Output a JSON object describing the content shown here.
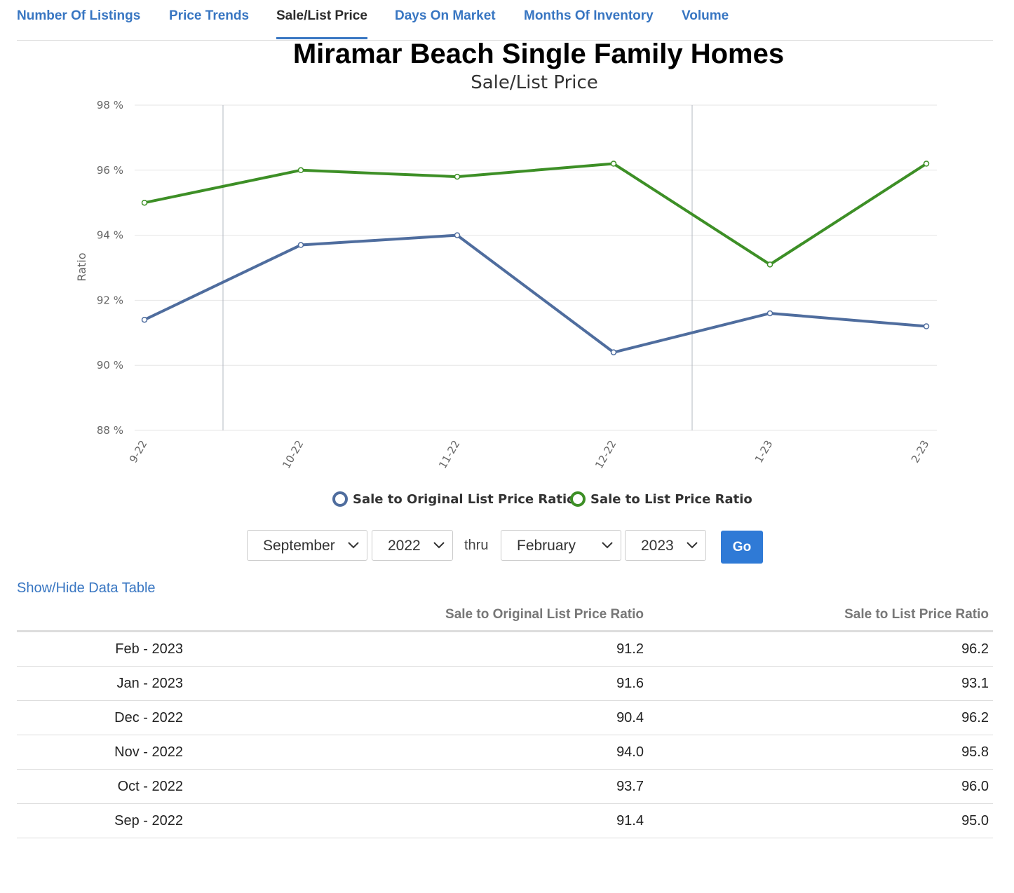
{
  "tabs": [
    {
      "label": "Number Of Listings",
      "active": false
    },
    {
      "label": "Price Trends",
      "active": false
    },
    {
      "label": "Sale/List Price",
      "active": true
    },
    {
      "label": "Days On Market",
      "active": false
    },
    {
      "label": "Months Of Inventory",
      "active": false
    },
    {
      "label": "Volume",
      "active": false
    }
  ],
  "chart_data": {
    "type": "line",
    "title": "Miramar Beach Single Family Homes",
    "subtitle": "Sale/List Price",
    "ylabel": "Ratio",
    "xlabel": "",
    "categories": [
      "9-22",
      "10-22",
      "11-22",
      "12-22",
      "1-23",
      "2-23"
    ],
    "ylim": [
      88,
      98
    ],
    "yticks": [
      88,
      90,
      92,
      94,
      96,
      98
    ],
    "ytick_suffix": " %",
    "grid": true,
    "legend_position": "bottom-center",
    "series": [
      {
        "name": "Sale to Original List Price Ratio",
        "color": "#4f6d9e",
        "values": [
          91.4,
          93.7,
          94.0,
          90.4,
          91.6,
          91.2
        ]
      },
      {
        "name": "Sale to List Price Ratio",
        "color": "#3d8f26",
        "values": [
          95.0,
          96.0,
          95.8,
          96.2,
          93.1,
          96.2
        ]
      }
    ]
  },
  "controls": {
    "start_month": "September",
    "start_year": "2022",
    "thru_label": "thru",
    "end_month": "February",
    "end_year": "2023",
    "go_label": "Go"
  },
  "toggle_label": "Show/Hide Data Table",
  "table": {
    "headers": [
      "",
      "Sale to Original List Price Ratio",
      "Sale to List Price Ratio"
    ],
    "rows": [
      [
        "Feb - 2023",
        "91.2",
        "96.2"
      ],
      [
        "Jan - 2023",
        "91.6",
        "93.1"
      ],
      [
        "Dec - 2022",
        "90.4",
        "96.2"
      ],
      [
        "Nov - 2022",
        "94.0",
        "95.8"
      ],
      [
        "Oct - 2022",
        "93.7",
        "96.0"
      ],
      [
        "Sep - 2022",
        "91.4",
        "95.0"
      ]
    ]
  }
}
